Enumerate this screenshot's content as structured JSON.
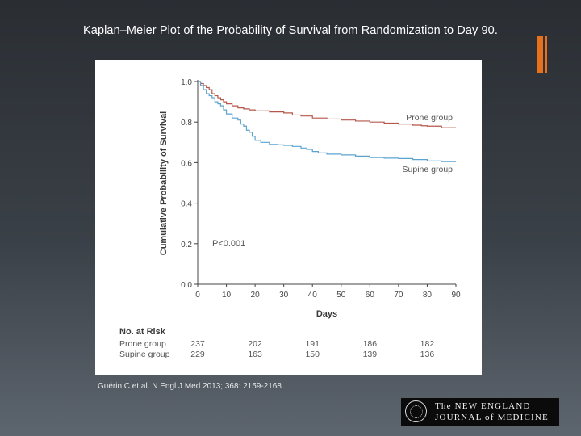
{
  "slide": {
    "title": "Kaplan–Meier Plot of the Probability of Survival from Randomization to Day 90.",
    "citation": "Guérin C et al. N Engl J Med 2013; 368: 2159-2168",
    "logo_line1": "The NEW ENGLAND",
    "logo_line2": "JOURNAL of MEDICINE",
    "accent_color": "#e8721c"
  },
  "chart_data": {
    "type": "line",
    "title": "",
    "xlabel": "Days",
    "ylabel": "Cumulative Probability of Survival",
    "xlim": [
      0,
      90
    ],
    "ylim": [
      0,
      1.0
    ],
    "xticks": [
      "0",
      "10",
      "20",
      "30",
      "40",
      "50",
      "60",
      "70",
      "80",
      "90"
    ],
    "yticks": [
      "0.0",
      "0.2",
      "0.4",
      "0.6",
      "0.8",
      "1.0"
    ],
    "annotation": "P<0.001",
    "series": [
      {
        "name": "Prone group",
        "color": "#b5574b",
        "points": [
          [
            0,
            1.0
          ],
          [
            1,
            0.99
          ],
          [
            2,
            0.98
          ],
          [
            3,
            0.97
          ],
          [
            4,
            0.96
          ],
          [
            5,
            0.94
          ],
          [
            6,
            0.93
          ],
          [
            7,
            0.92
          ],
          [
            8,
            0.91
          ],
          [
            9,
            0.9
          ],
          [
            10,
            0.89
          ],
          [
            12,
            0.88
          ],
          [
            14,
            0.87
          ],
          [
            16,
            0.865
          ],
          [
            18,
            0.86
          ],
          [
            20,
            0.855
          ],
          [
            25,
            0.85
          ],
          [
            30,
            0.845
          ],
          [
            33,
            0.835
          ],
          [
            36,
            0.83
          ],
          [
            40,
            0.82
          ],
          [
            45,
            0.815
          ],
          [
            50,
            0.81
          ],
          [
            55,
            0.805
          ],
          [
            60,
            0.8
          ],
          [
            65,
            0.795
          ],
          [
            70,
            0.79
          ],
          [
            75,
            0.785
          ],
          [
            78,
            0.782
          ],
          [
            80,
            0.78
          ],
          [
            85,
            0.772
          ],
          [
            90,
            0.772
          ]
        ]
      },
      {
        "name": "Supine group",
        "color": "#5ba4cf",
        "points": [
          [
            0,
            1.0
          ],
          [
            1,
            0.98
          ],
          [
            2,
            0.96
          ],
          [
            3,
            0.94
          ],
          [
            4,
            0.93
          ],
          [
            5,
            0.92
          ],
          [
            6,
            0.9
          ],
          [
            7,
            0.89
          ],
          [
            8,
            0.88
          ],
          [
            9,
            0.86
          ],
          [
            10,
            0.84
          ],
          [
            12,
            0.82
          ],
          [
            14,
            0.81
          ],
          [
            15,
            0.79
          ],
          [
            16,
            0.78
          ],
          [
            17,
            0.76
          ],
          [
            18,
            0.75
          ],
          [
            19,
            0.73
          ],
          [
            20,
            0.71
          ],
          [
            22,
            0.7
          ],
          [
            25,
            0.69
          ],
          [
            28,
            0.688
          ],
          [
            30,
            0.685
          ],
          [
            33,
            0.68
          ],
          [
            36,
            0.672
          ],
          [
            38,
            0.665
          ],
          [
            40,
            0.655
          ],
          [
            42,
            0.648
          ],
          [
            45,
            0.642
          ],
          [
            50,
            0.638
          ],
          [
            55,
            0.632
          ],
          [
            60,
            0.625
          ],
          [
            65,
            0.622
          ],
          [
            70,
            0.62
          ],
          [
            75,
            0.615
          ],
          [
            80,
            0.608
          ],
          [
            85,
            0.605
          ],
          [
            90,
            0.605
          ]
        ]
      }
    ],
    "risk_table": {
      "header": "No. at Risk",
      "rows": [
        {
          "label": "Prone group",
          "values": [
            "237",
            "202",
            "191",
            "186",
            "182"
          ]
        },
        {
          "label": "Supine group",
          "values": [
            "229",
            "163",
            "150",
            "139",
            "136"
          ]
        }
      ],
      "days": [
        0,
        20,
        40,
        60,
        80
      ]
    }
  }
}
